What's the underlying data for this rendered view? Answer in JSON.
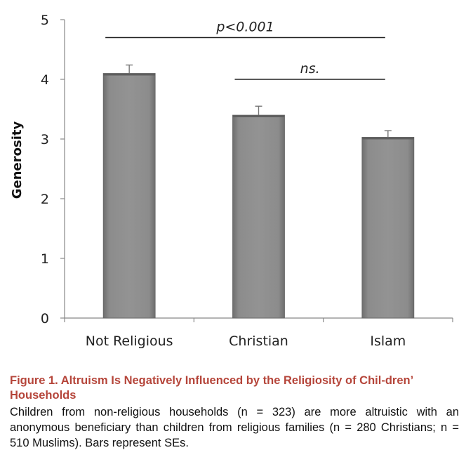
{
  "chart_data": {
    "type": "bar",
    "categories": [
      "Not Religious",
      "Christian",
      "Islam"
    ],
    "values": [
      4.1,
      3.4,
      3.03
    ],
    "errors": [
      0.14,
      0.15,
      0.11
    ],
    "ylabel": "Generosity",
    "xlabel": "",
    "ylim": [
      0,
      5
    ],
    "yticks": [
      0,
      1,
      2,
      3,
      4,
      5
    ],
    "grid": false,
    "bar_color": "#8a8a8a",
    "annotations": [
      {
        "label": "p<0.001",
        "from": "Not Religious",
        "to": "Islam",
        "y": 4.7
      },
      {
        "label": "ns.",
        "from": "Christian",
        "to": "Islam",
        "y": 4.0
      }
    ]
  },
  "caption": {
    "title": "Figure 1.  Altruism Is Negatively Influenced by the Religiosity of Chil-dren’ Households",
    "body": "Children from non-religious households (n = 323) are more altruistic with an anonymous beneficiary than children from religious families (n = 280 Christians; n = 510 Muslims). Bars represent SEs."
  },
  "colors": {
    "caption_title": "#b5453a",
    "bar": "#8a8a8a"
  }
}
